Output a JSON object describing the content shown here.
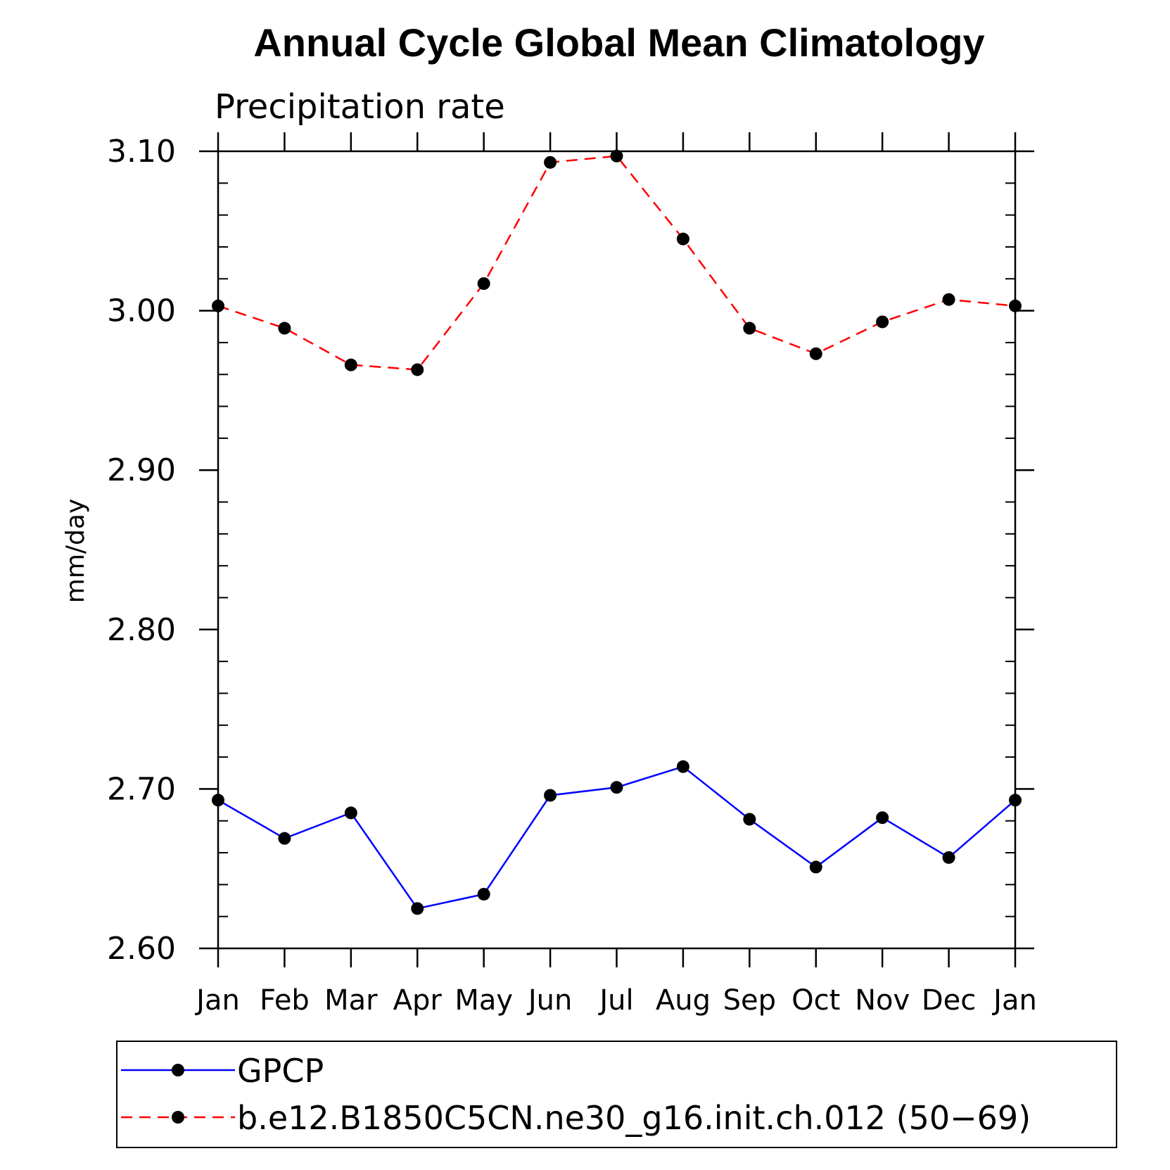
{
  "chart_data": {
    "type": "line",
    "title": "Annual Cycle Global Mean Climatology",
    "subtitle": "Precipitation rate",
    "xlabel": "",
    "ylabel": "mm/day",
    "categories": [
      "Jan",
      "Feb",
      "Mar",
      "Apr",
      "May",
      "Jun",
      "Jul",
      "Aug",
      "Sep",
      "Oct",
      "Nov",
      "Dec",
      "Jan"
    ],
    "ylim": [
      2.6,
      3.1
    ],
    "yticks": [
      "2.60",
      "2.70",
      "2.80",
      "2.90",
      "3.00",
      "3.10"
    ],
    "grid": false,
    "legend_position": "bottom",
    "series": [
      {
        "name": "GPCP",
        "color": "#0000ff",
        "dash": "solid",
        "marker": "filled-circle",
        "values": [
          2.693,
          2.669,
          2.685,
          2.625,
          2.634,
          2.696,
          2.701,
          2.714,
          2.681,
          2.651,
          2.682,
          2.657,
          2.693
        ]
      },
      {
        "name": "b.e12.B1850C5CN.ne30_g16.init.ch.012 (50−69)",
        "color": "#ff0000",
        "dash": "dashed",
        "marker": "filled-circle",
        "values": [
          3.003,
          2.989,
          2.966,
          2.963,
          3.017,
          3.093,
          3.097,
          3.045,
          2.989,
          2.973,
          2.993,
          3.007,
          3.003
        ]
      }
    ]
  }
}
